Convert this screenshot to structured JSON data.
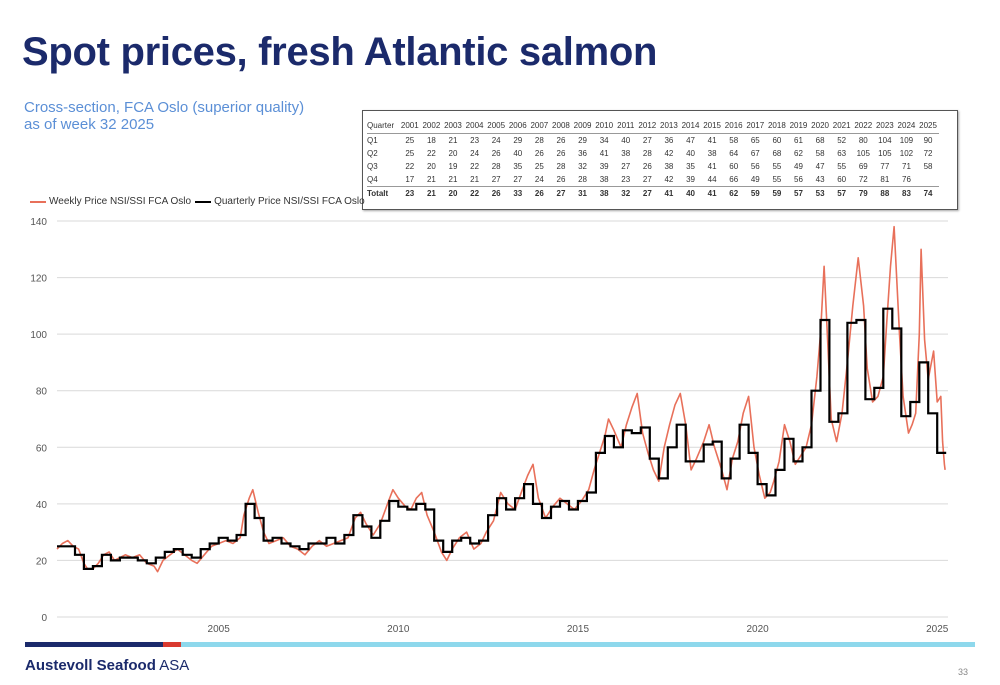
{
  "title": "Spot prices, fresh Atlantic salmon",
  "subtitle": [
    "Cross-section, FCA Oslo (superior quality)",
    "as of week 32 2025"
  ],
  "footer": {
    "company_bold": "Austevoll Seafood",
    "company_suffix": " ASA",
    "page_number": "33"
  },
  "colors": {
    "weekly": "#e8705a",
    "quarterly": "#000000",
    "title": "#1b2a6b",
    "subtitle": "#5b8fd6",
    "grid": "#d9d9d9"
  },
  "table": {
    "header": [
      "Quarter",
      "2001",
      "2002",
      "2003",
      "2004",
      "2005",
      "2006",
      "2007",
      "2008",
      "2009",
      "2010",
      "2011",
      "2012",
      "2013",
      "2014",
      "2015",
      "2016",
      "2017",
      "2018",
      "2019",
      "2020",
      "2021",
      "2022",
      "2023",
      "2024",
      "2025"
    ],
    "rows": [
      [
        "Q1",
        "25",
        "18",
        "21",
        "23",
        "24",
        "29",
        "28",
        "26",
        "29",
        "34",
        "40",
        "27",
        "36",
        "47",
        "41",
        "58",
        "65",
        "60",
        "61",
        "68",
        "52",
        "80",
        "104",
        "109",
        "90"
      ],
      [
        "Q2",
        "25",
        "22",
        "20",
        "24",
        "26",
        "40",
        "26",
        "26",
        "36",
        "41",
        "38",
        "28",
        "42",
        "40",
        "38",
        "64",
        "67",
        "68",
        "62",
        "58",
        "63",
        "105",
        "105",
        "102",
        "72"
      ],
      [
        "Q3",
        "22",
        "20",
        "19",
        "22",
        "28",
        "35",
        "25",
        "28",
        "32",
        "39",
        "27",
        "26",
        "38",
        "35",
        "41",
        "60",
        "56",
        "55",
        "49",
        "47",
        "55",
        "69",
        "77",
        "71",
        "58"
      ],
      [
        "Q4",
        "17",
        "21",
        "21",
        "21",
        "27",
        "27",
        "24",
        "26",
        "28",
        "38",
        "23",
        "27",
        "42",
        "39",
        "44",
        "66",
        "49",
        "55",
        "56",
        "43",
        "60",
        "72",
        "81",
        "76",
        ""
      ]
    ],
    "total": [
      "Totalt",
      "23",
      "21",
      "20",
      "22",
      "26",
      "33",
      "26",
      "27",
      "31",
      "38",
      "32",
      "27",
      "41",
      "40",
      "41",
      "62",
      "59",
      "59",
      "57",
      "53",
      "57",
      "79",
      "88",
      "83",
      "74"
    ]
  },
  "chart_data": {
    "type": "line",
    "x_unit": "year",
    "y_ticks": [
      0,
      20,
      40,
      60,
      80,
      100,
      120,
      140
    ],
    "x_ticks": [
      "2005",
      "2010",
      "2015",
      "2020",
      "2025"
    ],
    "ylim": [
      0,
      140
    ],
    "xlim": [
      2001.0,
      2025.8
    ],
    "grid": "horizontal",
    "legend_position": "top-left",
    "series": [
      {
        "name": "Weekly Price NSI/SSI FCA Oslo",
        "kind": "weekly",
        "points": [
          [
            2001.0,
            24
          ],
          [
            2001.15,
            26
          ],
          [
            2001.3,
            27
          ],
          [
            2001.45,
            25
          ],
          [
            2001.6,
            24
          ],
          [
            2001.75,
            19
          ],
          [
            2001.85,
            17
          ],
          [
            2002.0,
            17
          ],
          [
            2002.15,
            19
          ],
          [
            2002.3,
            22
          ],
          [
            2002.45,
            23
          ],
          [
            2002.6,
            20
          ],
          [
            2002.75,
            21
          ],
          [
            2002.9,
            22
          ],
          [
            2003.1,
            21
          ],
          [
            2003.3,
            22
          ],
          [
            2003.5,
            19
          ],
          [
            2003.7,
            18
          ],
          [
            2003.8,
            16
          ],
          [
            2003.95,
            20
          ],
          [
            2004.15,
            22
          ],
          [
            2004.35,
            24
          ],
          [
            2004.55,
            22
          ],
          [
            2004.75,
            20
          ],
          [
            2004.9,
            19
          ],
          [
            2005.1,
            22
          ],
          [
            2005.3,
            25
          ],
          [
            2005.5,
            26
          ],
          [
            2005.7,
            27
          ],
          [
            2005.9,
            26
          ],
          [
            2006.1,
            28
          ],
          [
            2006.2,
            36
          ],
          [
            2006.35,
            42
          ],
          [
            2006.45,
            45
          ],
          [
            2006.6,
            37
          ],
          [
            2006.75,
            30
          ],
          [
            2006.9,
            26
          ],
          [
            2007.1,
            27
          ],
          [
            2007.3,
            28
          ],
          [
            2007.5,
            25
          ],
          [
            2007.7,
            24
          ],
          [
            2007.9,
            22
          ],
          [
            2008.1,
            25
          ],
          [
            2008.3,
            27
          ],
          [
            2008.5,
            25
          ],
          [
            2008.7,
            26
          ],
          [
            2008.9,
            27
          ],
          [
            2009.1,
            28
          ],
          [
            2009.3,
            35
          ],
          [
            2009.45,
            37
          ],
          [
            2009.6,
            33
          ],
          [
            2009.8,
            29
          ],
          [
            2010.0,
            33
          ],
          [
            2010.2,
            40
          ],
          [
            2010.35,
            45
          ],
          [
            2010.5,
            42
          ],
          [
            2010.7,
            39
          ],
          [
            2010.85,
            38
          ],
          [
            2011.0,
            42
          ],
          [
            2011.15,
            44
          ],
          [
            2011.3,
            36
          ],
          [
            2011.5,
            30
          ],
          [
            2011.7,
            23
          ],
          [
            2011.85,
            20
          ],
          [
            2012.0,
            24
          ],
          [
            2012.2,
            28
          ],
          [
            2012.4,
            30
          ],
          [
            2012.6,
            24
          ],
          [
            2012.8,
            26
          ],
          [
            2012.95,
            30
          ],
          [
            2013.15,
            34
          ],
          [
            2013.35,
            44
          ],
          [
            2013.55,
            40
          ],
          [
            2013.75,
            38
          ],
          [
            2013.95,
            45
          ],
          [
            2014.1,
            50
          ],
          [
            2014.25,
            54
          ],
          [
            2014.4,
            42
          ],
          [
            2014.6,
            35
          ],
          [
            2014.8,
            39
          ],
          [
            2015.0,
            42
          ],
          [
            2015.2,
            40
          ],
          [
            2015.4,
            38
          ],
          [
            2015.6,
            41
          ],
          [
            2015.8,
            45
          ],
          [
            2015.95,
            52
          ],
          [
            2016.1,
            58
          ],
          [
            2016.25,
            64
          ],
          [
            2016.35,
            70
          ],
          [
            2016.5,
            66
          ],
          [
            2016.7,
            60
          ],
          [
            2016.85,
            68
          ],
          [
            2017.0,
            74
          ],
          [
            2017.15,
            79
          ],
          [
            2017.3,
            65
          ],
          [
            2017.45,
            58
          ],
          [
            2017.6,
            52
          ],
          [
            2017.75,
            48
          ],
          [
            2017.9,
            60
          ],
          [
            2018.05,
            68
          ],
          [
            2018.2,
            75
          ],
          [
            2018.35,
            79
          ],
          [
            2018.5,
            68
          ],
          [
            2018.65,
            52
          ],
          [
            2018.8,
            56
          ],
          [
            2019.0,
            62
          ],
          [
            2019.15,
            68
          ],
          [
            2019.3,
            60
          ],
          [
            2019.5,
            52
          ],
          [
            2019.65,
            45
          ],
          [
            2019.8,
            56
          ],
          [
            2019.95,
            62
          ],
          [
            2020.1,
            72
          ],
          [
            2020.25,
            78
          ],
          [
            2020.4,
            60
          ],
          [
            2020.55,
            50
          ],
          [
            2020.7,
            42
          ],
          [
            2020.85,
            44
          ],
          [
            2020.95,
            48
          ],
          [
            2021.1,
            55
          ],
          [
            2021.25,
            68
          ],
          [
            2021.4,
            62
          ],
          [
            2021.55,
            54
          ],
          [
            2021.7,
            57
          ],
          [
            2021.85,
            60
          ],
          [
            2022.0,
            68
          ],
          [
            2022.15,
            85
          ],
          [
            2022.25,
            100
          ],
          [
            2022.35,
            124
          ],
          [
            2022.45,
            98
          ],
          [
            2022.55,
            70
          ],
          [
            2022.7,
            62
          ],
          [
            2022.85,
            72
          ],
          [
            2023.0,
            90
          ],
          [
            2023.15,
            110
          ],
          [
            2023.3,
            127
          ],
          [
            2023.45,
            110
          ],
          [
            2023.55,
            88
          ],
          [
            2023.7,
            76
          ],
          [
            2023.85,
            78
          ],
          [
            2024.0,
            85
          ],
          [
            2024.1,
            105
          ],
          [
            2024.2,
            124
          ],
          [
            2024.3,
            138
          ],
          [
            2024.45,
            100
          ],
          [
            2024.55,
            78
          ],
          [
            2024.7,
            65
          ],
          [
            2024.8,
            68
          ],
          [
            2024.9,
            72
          ],
          [
            2025.0,
            100
          ],
          [
            2025.05,
            130
          ],
          [
            2025.15,
            98
          ],
          [
            2025.25,
            84
          ],
          [
            2025.4,
            94
          ],
          [
            2025.5,
            76
          ],
          [
            2025.6,
            78
          ],
          [
            2025.65,
            62
          ],
          [
            2025.7,
            54
          ],
          [
            2025.72,
            52
          ]
        ]
      },
      {
        "name": "Quarterly Price NSI/SSI FCA Oslo",
        "kind": "quarterly",
        "quarterly": [
          [
            25,
            25,
            22,
            17
          ],
          [
            18,
            22,
            20,
            21
          ],
          [
            21,
            20,
            19,
            21
          ],
          [
            23,
            24,
            22,
            21
          ],
          [
            24,
            26,
            28,
            27
          ],
          [
            29,
            40,
            35,
            27
          ],
          [
            28,
            26,
            25,
            24
          ],
          [
            26,
            26,
            28,
            26
          ],
          [
            29,
            36,
            32,
            28
          ],
          [
            34,
            41,
            39,
            38
          ],
          [
            40,
            38,
            27,
            23
          ],
          [
            27,
            28,
            26,
            27
          ],
          [
            36,
            42,
            38,
            42
          ],
          [
            47,
            40,
            35,
            39
          ],
          [
            41,
            38,
            41,
            44
          ],
          [
            58,
            64,
            60,
            66
          ],
          [
            65,
            67,
            56,
            49
          ],
          [
            60,
            68,
            55,
            55
          ],
          [
            61,
            62,
            49,
            56
          ],
          [
            68,
            58,
            47,
            43
          ],
          [
            52,
            63,
            55,
            60
          ],
          [
            80,
            105,
            69,
            72
          ],
          [
            104,
            105,
            77,
            81
          ],
          [
            109,
            102,
            71,
            76
          ],
          [
            90,
            72,
            58
          ]
        ],
        "start_year": 2001
      }
    ]
  }
}
